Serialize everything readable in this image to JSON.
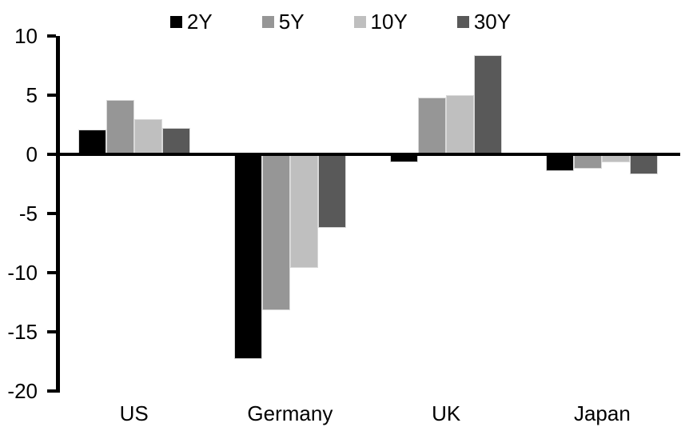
{
  "chart_data": {
    "type": "bar",
    "title": "",
    "categories": [
      "US",
      "Germany",
      "UK",
      "Japan"
    ],
    "series": [
      {
        "name": "2Y",
        "color": "#000000",
        "values": [
          2.1,
          -17.3,
          -0.7,
          -1.4
        ]
      },
      {
        "name": "5Y",
        "color": "#969696",
        "values": [
          4.6,
          -13.2,
          4.8,
          -1.2
        ]
      },
      {
        "name": "10Y",
        "color": "#bfbfbf",
        "values": [
          3.0,
          -9.6,
          5.0,
          -0.7
        ]
      },
      {
        "name": "30Y",
        "color": "#595959",
        "values": [
          2.2,
          -6.2,
          8.4,
          -1.7
        ]
      }
    ],
    "ylim": [
      -20,
      10
    ],
    "yticks": [
      10,
      5,
      0,
      -5,
      -10,
      -15,
      -20
    ],
    "ytick_step": 5,
    "xlabel": "",
    "ylabel": "",
    "legend_position": "top",
    "grid": false,
    "axis_color": "#000000",
    "bar_outline_color": "#d9d9d9",
    "background_color": "#ffffff"
  }
}
